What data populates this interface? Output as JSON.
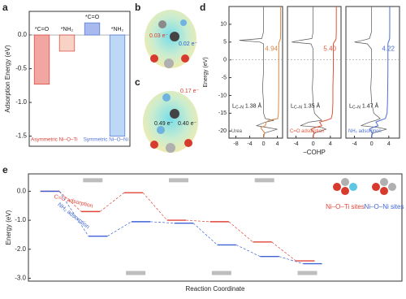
{
  "panel_labels": [
    "a",
    "b",
    "c",
    "d",
    "e"
  ],
  "panel_b": {
    "annotations": [
      "0.03 e⁻",
      "0.02 e⁻"
    ]
  },
  "panel_c": {
    "annotations": [
      "0.17 e⁻",
      "0.49 e⁻",
      "0.40 e⁻"
    ]
  },
  "chart_data": [
    {
      "type": "bar",
      "ylabel": "Adsorption Energy (eV)",
      "ylim": [
        -1.65,
        0.35
      ],
      "yticks": [
        {
          "value": 0,
          "label": "0.0"
        },
        -0.5,
        {
          "value": -1,
          "label": "-1.0"
        },
        -1.5
      ],
      "zero_line": true,
      "series": [
        {
          "name": "Asymmetric Ni–O–Ti",
          "color": "#d9413b",
          "fill_colors": [
            "#f2a6a2",
            "#f8d3c5"
          ],
          "categories": [
            "*C=O",
            "*NH₂"
          ],
          "values": [
            -0.73,
            -0.24
          ]
        },
        {
          "name": "Symmetric Ni–O–Ni",
          "color": "#4f74d6",
          "fill_colors": [
            "#a7b9ee",
            "#bcd8f6"
          ],
          "categories": [
            "*C=O",
            "*NH₂"
          ],
          "values": [
            0.18,
            -1.5
          ]
        }
      ]
    },
    {
      "type": "cohp",
      "ylabel": "Energy (eV)",
      "xlabel": "−COHP",
      "ylim": [
        -22,
        15
      ],
      "yticks": [
        10,
        5,
        0,
        -5,
        -10,
        -15,
        -20
      ],
      "fermi_level": 0,
      "energies": [
        15,
        8,
        6,
        5.5,
        5,
        4.5,
        3,
        0,
        -3,
        -8,
        -12,
        -15,
        -16.5,
        -17,
        -17.5,
        -18.5,
        -19,
        -19.5,
        -20.5,
        -21,
        -22
      ],
      "panels": [
        {
          "xlim": [
            -10,
            5.5
          ],
          "xticks": [
            -8,
            -4,
            0,
            4
          ],
          "icohp": "4.94",
          "color": "#d9894a",
          "bond_label": "L",
          "bond_label_sub": "C–N",
          "bond_length": "1.38 Å",
          "caption": "Urea",
          "caption_color": "#555555",
          "series": [
            {
              "color": "#555555",
              "x": [
                0,
                0,
                -0.5,
                -7,
                -1,
                0,
                0,
                0,
                0,
                -0.3,
                0,
                0,
                0.5,
                3,
                0.5,
                -2,
                1,
                4,
                0.5,
                0,
                0
              ]
            },
            {
              "color": "#d9894a",
              "x": [
                4.94,
                4.94,
                4.9,
                4.7,
                4.5,
                4.4,
                4.4,
                4.4,
                4.4,
                4.4,
                4.35,
                4.3,
                4.1,
                1.5,
                0.8,
                0.5,
                -0.8,
                -0.5,
                0.3,
                0.2,
                0
              ]
            }
          ]
        },
        {
          "xlim": [
            -6,
            6.5
          ],
          "xticks": [
            -4,
            0,
            4
          ],
          "icohp": "5.40",
          "color": "#e0533a",
          "bond_label": "L",
          "bond_label_sub": "C–N",
          "bond_length": "1.35 Å",
          "caption": "C=O adsorption",
          "caption_color": "#e0533a",
          "series": [
            {
              "color": "#555555",
              "x": [
                0,
                0,
                -0.3,
                -3,
                -5,
                -0.5,
                0,
                0,
                0,
                -0.2,
                0,
                0.3,
                1.5,
                2,
                -1,
                -3,
                2,
                3,
                0.5,
                0,
                0
              ]
            },
            {
              "color": "#e0533a",
              "x": [
                5.4,
                5.4,
                5.35,
                5.2,
                4.9,
                4.7,
                4.7,
                4.7,
                4.7,
                4.6,
                4.6,
                4.5,
                4.2,
                3,
                1.5,
                2,
                0.5,
                -0.5,
                0.2,
                0.1,
                0
              ]
            }
          ]
        },
        {
          "xlim": [
            -6,
            6.5
          ],
          "xticks": [
            -4,
            0,
            4
          ],
          "icohp": "4.22",
          "color": "#4a6fd6",
          "bond_label": "L",
          "bond_label_sub": "C–N",
          "bond_length": "1.47 Å",
          "caption": "NH₂ adsorption",
          "caption_color": "#4a6fd6",
          "series": [
            {
              "color": "#555555",
              "x": [
                0,
                0,
                -0.5,
                -2,
                -4,
                -1,
                0,
                0,
                0,
                -0.2,
                0,
                0.5,
                2,
                1,
                -0.5,
                -2.5,
                1.5,
                3.5,
                0.5,
                0,
                0
              ]
            },
            {
              "color": "#4a6fd6",
              "x": [
                4.22,
                4.22,
                4.2,
                4.1,
                3.9,
                3.8,
                3.8,
                3.8,
                3.8,
                3.75,
                3.7,
                3.6,
                3.2,
                2,
                1,
                1.5,
                0.3,
                -0.5,
                0.2,
                0.1,
                0
              ]
            }
          ]
        }
      ]
    },
    {
      "type": "energy_profile",
      "ylabel": "Energy (eV)",
      "xlabel": "Reaction Coordinate",
      "ylim": [
        -3.1,
        0.6
      ],
      "yticks": [
        {
          "value": 0,
          "label": "0.0"
        },
        {
          "value": -1,
          "label": "-1.0"
        },
        {
          "value": -2,
          "label": "-2.0"
        },
        {
          "value": -3,
          "label": "-3.0"
        }
      ],
      "series": [
        {
          "name": "Ni–O–Ti sites",
          "color": "#e0453a",
          "annotation": "C=O adsorption",
          "values": [
            0,
            -0.7,
            -0.05,
            -1.0,
            -1.05,
            -1.75,
            -2.4
          ]
        },
        {
          "name": "Ni–O–Ni sites",
          "color": "#3f63d6",
          "annotation": "NH₂ adsorption",
          "values": [
            0,
            -1.55,
            -1.05,
            -1.1,
            -1.85,
            -2.25,
            -2.5
          ]
        }
      ]
    }
  ]
}
